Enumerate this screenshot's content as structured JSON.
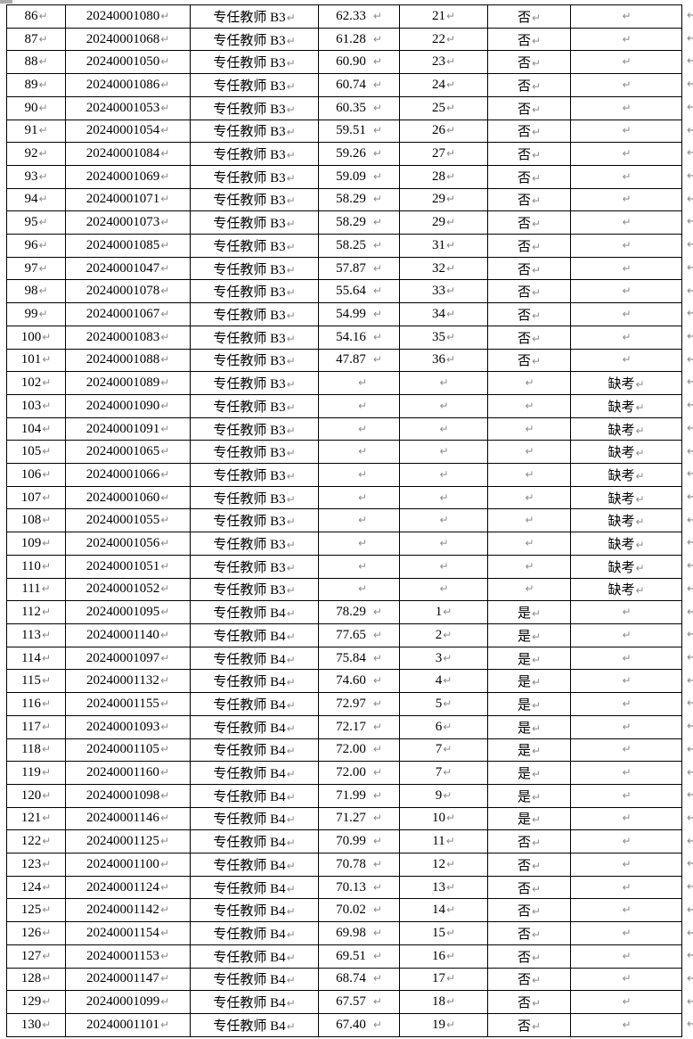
{
  "page": {
    "background": "#ffffff",
    "border_color": "#000000",
    "text_color": "#000000",
    "formatting_mark_color": "#8c8c8c"
  },
  "marks": {
    "paragraph_mark": "↵",
    "row_end_mark": "↵"
  },
  "table": {
    "column_keys": [
      "serial",
      "exam_id",
      "position",
      "score",
      "rank",
      "qualified",
      "remark"
    ],
    "rows": [
      [
        "86",
        "20240001080",
        "专任教师 B3",
        "62.33",
        "21",
        "否",
        ""
      ],
      [
        "87",
        "20240001068",
        "专任教师 B3",
        "61.28",
        "22",
        "否",
        ""
      ],
      [
        "88",
        "20240001050",
        "专任教师 B3",
        "60.90",
        "23",
        "否",
        ""
      ],
      [
        "89",
        "20240001086",
        "专任教师 B3",
        "60.74",
        "24",
        "否",
        ""
      ],
      [
        "90",
        "20240001053",
        "专任教师 B3",
        "60.35",
        "25",
        "否",
        ""
      ],
      [
        "91",
        "20240001054",
        "专任教师 B3",
        "59.51",
        "26",
        "否",
        ""
      ],
      [
        "92",
        "20240001084",
        "专任教师 B3",
        "59.26",
        "27",
        "否",
        ""
      ],
      [
        "93",
        "20240001069",
        "专任教师 B3",
        "59.09",
        "28",
        "否",
        ""
      ],
      [
        "94",
        "20240001071",
        "专任教师 B3",
        "58.29",
        "29",
        "否",
        ""
      ],
      [
        "95",
        "20240001073",
        "专任教师 B3",
        "58.29",
        "29",
        "否",
        ""
      ],
      [
        "96",
        "20240001085",
        "专任教师 B3",
        "58.25",
        "31",
        "否",
        ""
      ],
      [
        "97",
        "20240001047",
        "专任教师 B3",
        "57.87",
        "32",
        "否",
        ""
      ],
      [
        "98",
        "20240001078",
        "专任教师 B3",
        "55.64",
        "33",
        "否",
        ""
      ],
      [
        "99",
        "20240001067",
        "专任教师 B3",
        "54.99",
        "34",
        "否",
        ""
      ],
      [
        "100",
        "20240001083",
        "专任教师 B3",
        "54.16",
        "35",
        "否",
        ""
      ],
      [
        "101",
        "20240001088",
        "专任教师 B3",
        "47.87",
        "36",
        "否",
        ""
      ],
      [
        "102",
        "20240001089",
        "专任教师 B3",
        "",
        "",
        "",
        "缺考"
      ],
      [
        "103",
        "20240001090",
        "专任教师 B3",
        "",
        "",
        "",
        "缺考"
      ],
      [
        "104",
        "20240001091",
        "专任教师 B3",
        "",
        "",
        "",
        "缺考"
      ],
      [
        "105",
        "20240001065",
        "专任教师 B3",
        "",
        "",
        "",
        "缺考"
      ],
      [
        "106",
        "20240001066",
        "专任教师 B3",
        "",
        "",
        "",
        "缺考"
      ],
      [
        "107",
        "20240001060",
        "专任教师 B3",
        "",
        "",
        "",
        "缺考"
      ],
      [
        "108",
        "20240001055",
        "专任教师 B3",
        "",
        "",
        "",
        "缺考"
      ],
      [
        "109",
        "20240001056",
        "专任教师 B3",
        "",
        "",
        "",
        "缺考"
      ],
      [
        "110",
        "20240001051",
        "专任教师 B3",
        "",
        "",
        "",
        "缺考"
      ],
      [
        "111",
        "20240001052",
        "专任教师 B3",
        "",
        "",
        "",
        "缺考"
      ],
      [
        "112",
        "20240001095",
        "专任教师 B4",
        "78.29",
        "1",
        "是",
        ""
      ],
      [
        "113",
        "20240001140",
        "专任教师 B4",
        "77.65",
        "2",
        "是",
        ""
      ],
      [
        "114",
        "20240001097",
        "专任教师 B4",
        "75.84",
        "3",
        "是",
        ""
      ],
      [
        "115",
        "20240001132",
        "专任教师 B4",
        "74.60",
        "4",
        "是",
        ""
      ],
      [
        "116",
        "20240001155",
        "专任教师 B4",
        "72.97",
        "5",
        "是",
        ""
      ],
      [
        "117",
        "20240001093",
        "专任教师 B4",
        "72.17",
        "6",
        "是",
        ""
      ],
      [
        "118",
        "20240001105",
        "专任教师 B4",
        "72.00",
        "7",
        "是",
        ""
      ],
      [
        "119",
        "20240001160",
        "专任教师 B4",
        "72.00",
        "7",
        "是",
        ""
      ],
      [
        "120",
        "20240001098",
        "专任教师 B4",
        "71.99",
        "9",
        "是",
        ""
      ],
      [
        "121",
        "20240001146",
        "专任教师 B4",
        "71.27",
        "10",
        "是",
        ""
      ],
      [
        "122",
        "20240001125",
        "专任教师 B4",
        "70.99",
        "11",
        "否",
        ""
      ],
      [
        "123",
        "20240001100",
        "专任教师 B4",
        "70.78",
        "12",
        "否",
        ""
      ],
      [
        "124",
        "20240001124",
        "专任教师 B4",
        "70.13",
        "13",
        "否",
        ""
      ],
      [
        "125",
        "20240001142",
        "专任教师 B4",
        "70.02",
        "14",
        "否",
        ""
      ],
      [
        "126",
        "20240001154",
        "专任教师 B4",
        "69.98",
        "15",
        "否",
        ""
      ],
      [
        "127",
        "20240001153",
        "专任教师 B4",
        "69.51",
        "16",
        "否",
        ""
      ],
      [
        "128",
        "20240001147",
        "专任教师 B4",
        "68.74",
        "17",
        "否",
        ""
      ],
      [
        "129",
        "20240001099",
        "专任教师 B4",
        "67.57",
        "18",
        "否",
        ""
      ],
      [
        "130",
        "20240001101",
        "专任教师 B4",
        "67.40",
        "19",
        "否",
        ""
      ]
    ]
  }
}
